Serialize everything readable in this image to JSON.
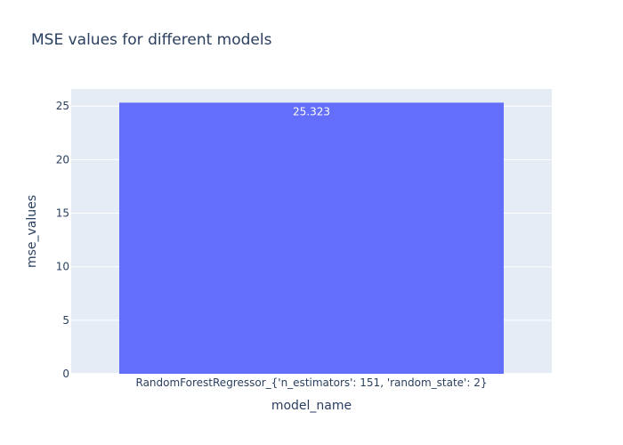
{
  "chart_data": {
    "type": "bar",
    "title": "MSE values for different models",
    "xlabel": "model_name",
    "ylabel": "mse_values",
    "categories": [
      "RandomForestRegressor_{'n_estimators': 151, 'random_state': 2}"
    ],
    "values": [
      25.323
    ],
    "data_labels": [
      "25.323"
    ],
    "ylim": [
      0,
      26.6
    ],
    "yticks": [
      0,
      5,
      10,
      15,
      20,
      25
    ],
    "grid": true,
    "legend": "none",
    "colors": {
      "bar": "#636efa",
      "plot_bg": "#e5ecf6",
      "grid": "#ffffff",
      "text": "#2a3f5f"
    }
  }
}
